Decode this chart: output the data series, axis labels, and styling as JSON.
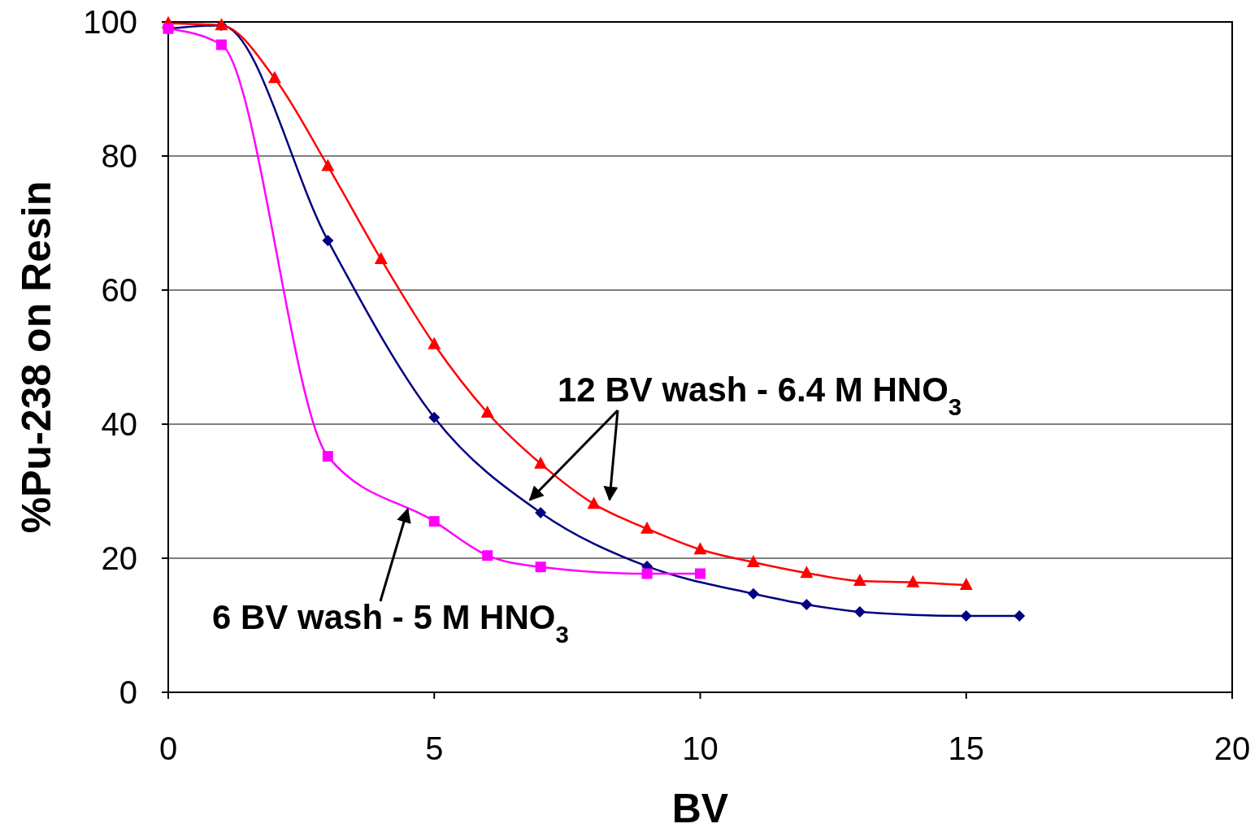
{
  "chart_data": {
    "type": "line",
    "xlabel": "BV",
    "ylabel": "%Pu-238 on Resin",
    "xlim": [
      0,
      20
    ],
    "ylim": [
      0,
      100
    ],
    "xticks": [
      0,
      5,
      10,
      15,
      20
    ],
    "yticks": [
      0,
      20,
      40,
      60,
      80,
      100
    ],
    "grid": "y",
    "line_style": "solid",
    "series": [
      {
        "color": "#000080",
        "marker": "diamond",
        "x": [
          0,
          1,
          3,
          5,
          7,
          9,
          11,
          12,
          13,
          15,
          16
        ],
        "values": [
          99,
          99.5,
          67.4,
          41,
          26.8,
          18.8,
          14.7,
          13.1,
          12,
          11.4,
          11.4
        ]
      },
      {
        "color": "#ff0000",
        "marker": "triangle",
        "x": [
          0,
          1,
          2,
          3,
          4,
          5,
          6,
          7,
          8,
          9,
          10,
          11,
          12,
          13,
          14,
          15
        ],
        "values": [
          99.8,
          99.5,
          91.6,
          78.5,
          64.6,
          51.9,
          41.7,
          34.1,
          28.1,
          24.4,
          21.3,
          19.4,
          17.8,
          16.6,
          16.4,
          16
        ]
      },
      {
        "color": "#ff00ff",
        "marker": "square",
        "x": [
          0,
          1,
          3,
          5,
          6,
          7,
          9,
          10
        ],
        "values": [
          99,
          96.6,
          35.2,
          25.5,
          20.4,
          18.7,
          17.7,
          17.7
        ]
      }
    ],
    "annotations": [
      {
        "text": "12 BV wash - 6.4 M HNO$_{3}$",
        "x": 6.8,
        "y": 28.7
      },
      {
        "text": "6 BV wash - 5 M HNO$_{3}$",
        "x": 4.5,
        "y": 27.3
      }
    ]
  }
}
